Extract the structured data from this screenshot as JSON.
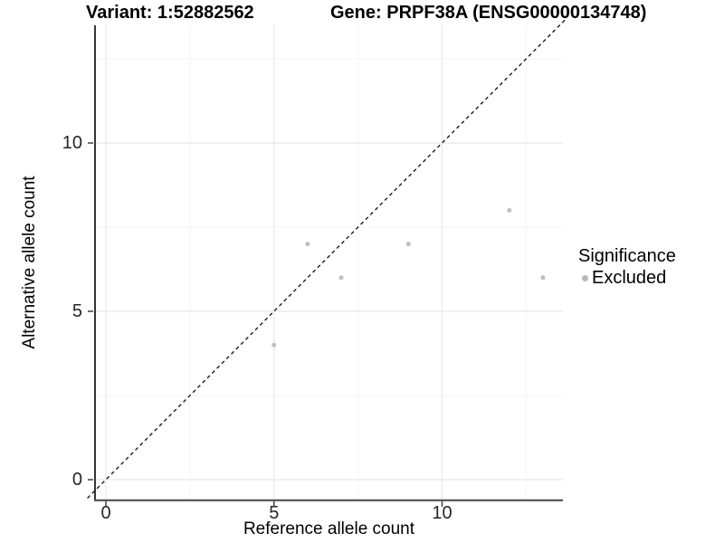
{
  "chart_data": {
    "type": "scatter",
    "title_left": "Variant: 1:52882562",
    "title_right": "Gene: PRPF38A (ENSG00000134748)",
    "xlabel": "Reference allele count",
    "ylabel": "Alternative allele count",
    "x_ticks": [
      0,
      5,
      10
    ],
    "y_ticks": [
      0,
      5,
      10
    ],
    "x_minor_grid": [
      2.5,
      7.5,
      12.5
    ],
    "y_minor_grid": [
      2.5,
      7.5,
      12.5
    ],
    "xlim": [
      -0.35,
      13.6
    ],
    "ylim": [
      -0.6,
      13.5
    ],
    "points": [
      {
        "x": 5,
        "y": 4,
        "significance": "Excluded"
      },
      {
        "x": 6,
        "y": 7,
        "significance": "Excluded"
      },
      {
        "x": 7,
        "y": 6,
        "significance": "Excluded"
      },
      {
        "x": 9,
        "y": 7,
        "significance": "Excluded"
      },
      {
        "x": 12,
        "y": 8,
        "significance": "Excluded"
      },
      {
        "x": 13,
        "y": 6,
        "significance": "Excluded"
      }
    ],
    "reference_line": {
      "type": "identity",
      "slope": 1,
      "intercept": 0,
      "style": "dashed",
      "color": "#1a1a1a"
    },
    "legend": {
      "title": "Significance",
      "position": "right",
      "entries": [
        {
          "label": "Excluded",
          "color": "#b9b9b9"
        }
      ]
    },
    "grid": true,
    "colors": {
      "point": "#bfbfbf",
      "grid_major": "#e8e8e8",
      "grid_minor": "#f4f4f4",
      "axis_line_y": "#1f1f1f",
      "axis_line_x": "#4f4f4f",
      "tick": "#333333",
      "tick_label": "#262626",
      "background": "#ffffff"
    }
  }
}
